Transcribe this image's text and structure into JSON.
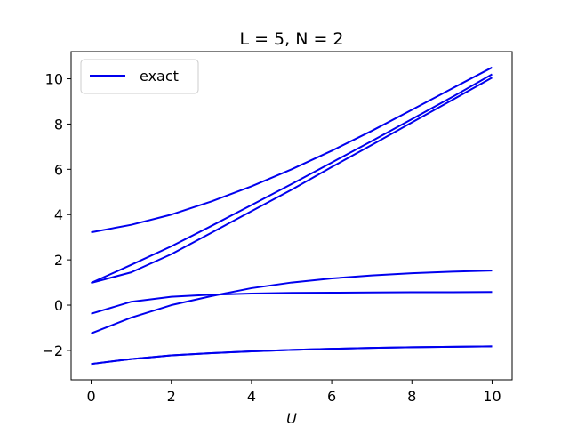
{
  "chart_data": {
    "type": "line",
    "title": "L = 5, N = 2",
    "xlabel": "U",
    "ylabel": "",
    "xlim": [
      -0.5,
      10.5
    ],
    "ylim": [
      -3.3,
      11.2
    ],
    "xticks": [
      0,
      2,
      4,
      6,
      8,
      10
    ],
    "yticks": [
      -2,
      0,
      2,
      4,
      6,
      8,
      10
    ],
    "ytick_labels": [
      "−2",
      "0",
      "2",
      "4",
      "6",
      "8",
      "10"
    ],
    "grid": false,
    "legend": {
      "position": "upper-left",
      "entries": [
        "exact"
      ]
    },
    "line_color": "#0000ee",
    "x": [
      0,
      1,
      2,
      3,
      4,
      5,
      6,
      7,
      8,
      9,
      10
    ],
    "series": [
      {
        "name": "exact",
        "values": [
          -2.6,
          -2.38,
          -2.22,
          -2.12,
          -2.04,
          -1.98,
          -1.93,
          -1.89,
          -1.86,
          -1.84,
          -1.82
        ]
      },
      {
        "values": [
          -2.6,
          -2.38,
          -2.22,
          -2.12,
          -2.04,
          -1.98,
          -1.93,
          -1.89,
          -1.86,
          -1.84,
          -1.82
        ]
      },
      {
        "values": [
          -1.25,
          -0.55,
          0.0,
          0.4,
          0.75,
          1.0,
          1.18,
          1.31,
          1.41,
          1.48,
          1.53
        ]
      },
      {
        "values": [
          -0.38,
          0.15,
          0.37,
          0.46,
          0.51,
          0.54,
          0.55,
          0.56,
          0.57,
          0.57,
          0.58
        ]
      },
      {
        "values": [
          0.98,
          1.45,
          2.25,
          3.2,
          4.15,
          5.1,
          6.1,
          7.08,
          8.07,
          9.06,
          10.05
        ]
      },
      {
        "values": [
          0.98,
          1.78,
          2.6,
          3.5,
          4.42,
          5.35,
          6.3,
          7.25,
          8.22,
          9.19,
          10.2
        ]
      },
      {
        "values": [
          3.22,
          3.55,
          4.0,
          4.58,
          5.25,
          6.0,
          6.82,
          7.7,
          8.63,
          9.57,
          10.5
        ]
      }
    ]
  }
}
